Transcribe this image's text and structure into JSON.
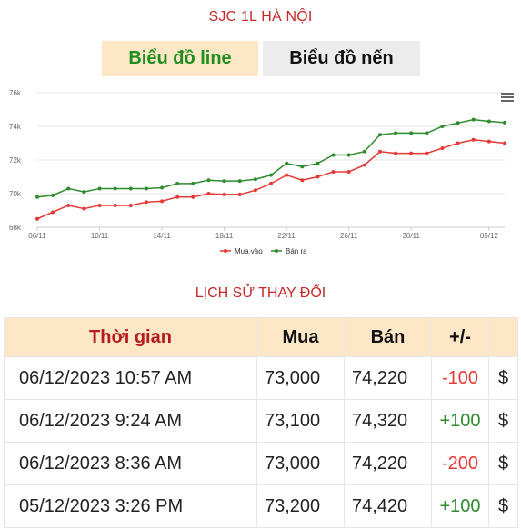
{
  "page": {
    "title": "SJC 1L HÀ NỘI",
    "tabs": {
      "line": "Biểu đồ line",
      "candle": "Biểu đồ nến"
    }
  },
  "chart_data": {
    "type": "line",
    "x": [
      "06/11",
      "07/11",
      "08/11",
      "09/11",
      "10/11",
      "11/11",
      "12/11",
      "13/11",
      "14/11",
      "15/11",
      "16/11",
      "17/11",
      "18/11",
      "19/11",
      "20/11",
      "21/11",
      "22/11",
      "23/11",
      "24/11",
      "25/11",
      "26/11",
      "27/11",
      "28/11",
      "29/11",
      "30/11",
      "01/12",
      "02/12",
      "03/12",
      "04/12",
      "05/12",
      "06/12"
    ],
    "xtick_labels": [
      "06/11",
      "10/11",
      "14/11",
      "18/11",
      "22/11",
      "26/11",
      "30/11",
      "05/12"
    ],
    "ytick_labels": [
      "68k",
      "70k",
      "72k",
      "74k",
      "76k"
    ],
    "ylim": [
      68000,
      76000
    ],
    "grid": true,
    "legend_position": "bottom-center",
    "series": [
      {
        "name": "Mua vào",
        "color": "#e53935",
        "values": [
          68500,
          68900,
          69300,
          69100,
          69300,
          69300,
          69300,
          69500,
          69550,
          69800,
          69800,
          70000,
          69950,
          69950,
          70200,
          70600,
          71100,
          70800,
          71000,
          71300,
          71300,
          71700,
          72500,
          72400,
          72400,
          72400,
          72700,
          73000,
          73200,
          73100,
          73000
        ]
      },
      {
        "name": "Bán ra",
        "color": "#2e8b2e",
        "values": [
          69800,
          69900,
          70300,
          70100,
          70300,
          70300,
          70300,
          70300,
          70350,
          70600,
          70600,
          70800,
          70750,
          70750,
          70850,
          71100,
          71800,
          71600,
          71800,
          72300,
          72300,
          72500,
          73500,
          73600,
          73600,
          73600,
          74000,
          74200,
          74400,
          74300,
          74220
        ]
      }
    ]
  },
  "history": {
    "title": "LỊCH SỬ THAY ĐỔI",
    "headers": {
      "time": "Thời gian",
      "buy": "Mua",
      "sell": "Bán",
      "change": "+/-"
    },
    "rows": [
      {
        "time": "06/12/2023 10:57 AM",
        "buy": "73,000",
        "sell": "74,220",
        "change": "-100",
        "dollar": "$"
      },
      {
        "time": "06/12/2023 9:24 AM",
        "buy": "73,100",
        "sell": "74,320",
        "change": "+100",
        "dollar": "$"
      },
      {
        "time": "06/12/2023 8:36 AM",
        "buy": "73,000",
        "sell": "74,220",
        "change": "-200",
        "dollar": "$"
      },
      {
        "time": "05/12/2023 3:26 PM",
        "buy": "73,200",
        "sell": "74,420",
        "change": "+100",
        "dollar": "$"
      }
    ]
  }
}
